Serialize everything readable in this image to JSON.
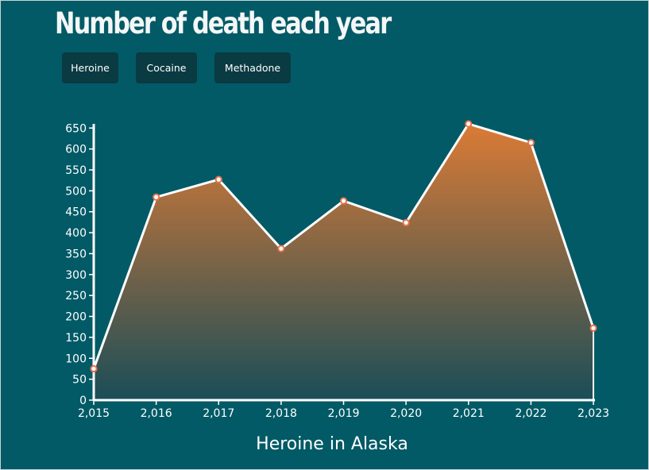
{
  "page": {
    "title": "Number of death each year"
  },
  "buttons": [
    {
      "label": "Heroine"
    },
    {
      "label": "Cocaine"
    },
    {
      "label": "Methadone"
    }
  ],
  "colors": {
    "background": "#015a66",
    "button_bg": "#0a3a42",
    "line": "#ffffff",
    "area_top": "#db7b36",
    "area_bottom": "#1a4d58",
    "point_stroke": "#e8734d",
    "point_fill": "#ffffff"
  },
  "chart_data": {
    "type": "area",
    "title": "Heroine in Alaska",
    "xlabel": "",
    "ylabel": "",
    "x": [
      2015,
      2016,
      2017,
      2018,
      2019,
      2020,
      2021,
      2022,
      2023
    ],
    "x_tick_labels": [
      "2,015",
      "2,016",
      "2,017",
      "2,018",
      "2,019",
      "2,020",
      "2,021",
      "2,022",
      "2,023"
    ],
    "series": [
      {
        "values": [
          75,
          485,
          527,
          362,
          476,
          424,
          660,
          615,
          172
        ]
      }
    ],
    "y_ticks": [
      0,
      50,
      100,
      150,
      200,
      250,
      300,
      350,
      400,
      450,
      500,
      550,
      600,
      650
    ],
    "ylim": [
      0,
      660
    ],
    "grid": false,
    "legend": "none"
  }
}
